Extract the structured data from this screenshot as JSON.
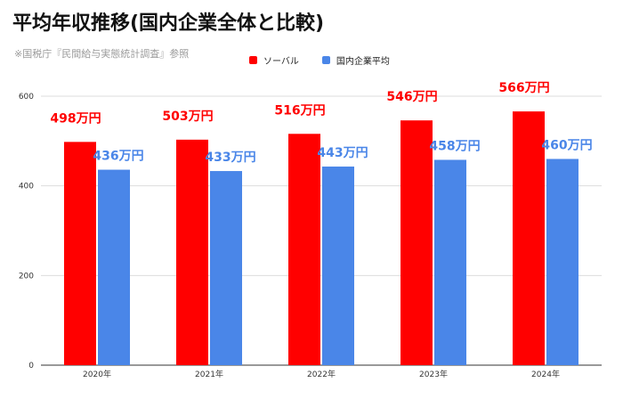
{
  "title": "平均年収推移(国内企業全体と比較)",
  "subtitle": "※国税庁『民間給与実態統計調査』参照",
  "chart_data": {
    "type": "bar",
    "categories": [
      "2020年",
      "2021年",
      "2022年",
      "2023年",
      "2024年"
    ],
    "series": [
      {
        "name": "ソーバル",
        "color": "#ff0000",
        "label_color": "#ff0000",
        "values": [
          498,
          503,
          516,
          546,
          566
        ],
        "labels": [
          "498万円",
          "503万円",
          "516万円",
          "546万円",
          "566万円"
        ]
      },
      {
        "name": "国内企業平均",
        "color": "#4a86e8",
        "label_color": "#4a86e8",
        "values": [
          436,
          433,
          443,
          458,
          460
        ],
        "labels": [
          "436万円",
          "433万円",
          "443万円",
          "458万円",
          "460万円"
        ]
      }
    ],
    "yticks": [
      "0",
      "200",
      "400",
      "600"
    ],
    "ylim": [
      0,
      600
    ],
    "grid": true,
    "legend_position": "top"
  }
}
